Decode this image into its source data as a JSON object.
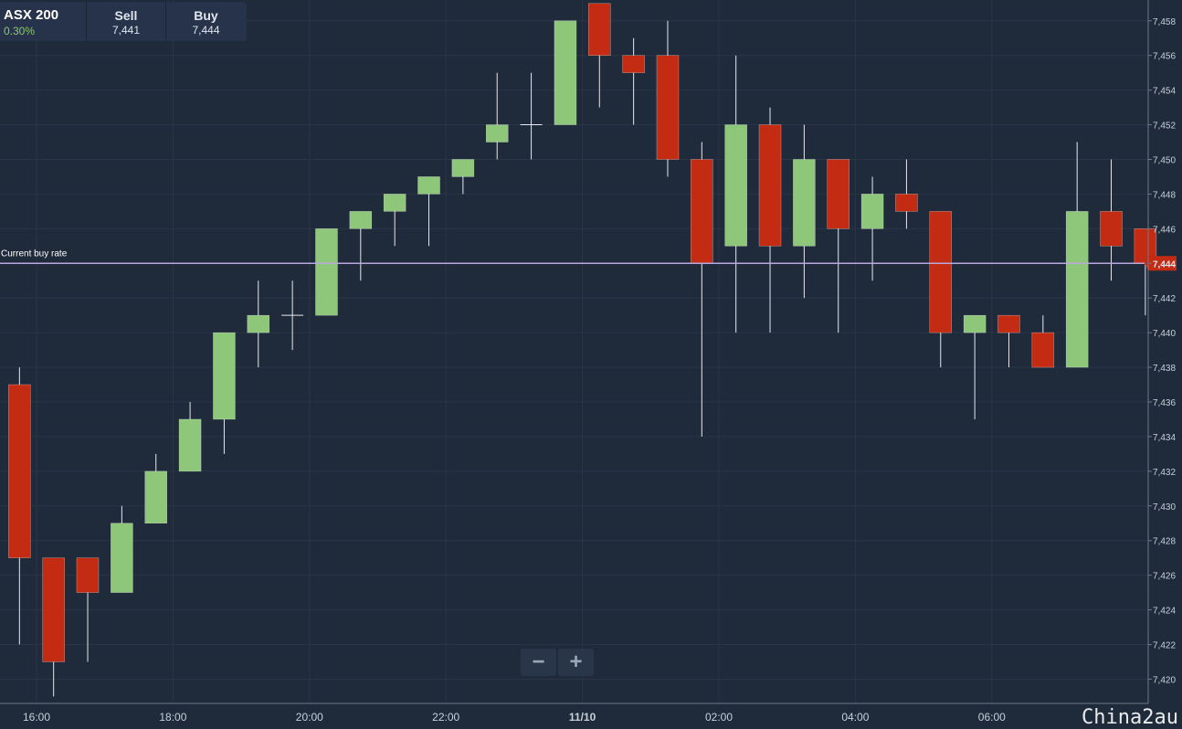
{
  "quote": {
    "instrument": "ASX 200",
    "change": "0.30%",
    "sell_label": "Sell",
    "sell_value": "7,441",
    "buy_label": "Buy",
    "buy_value": "7,444"
  },
  "zoom": {
    "out_label": "−",
    "in_label": "+"
  },
  "watermark": "China2au",
  "chart_data": {
    "type": "candlestick",
    "title": "",
    "x_tick_labels": [
      "16:00",
      "18:00",
      "20:00",
      "22:00",
      "11/10",
      "02:00",
      "04:00",
      "06:00"
    ],
    "y_tick_labels": [
      "7,420",
      "7,422",
      "7,424",
      "7,426",
      "7,428",
      "7,430",
      "7,432",
      "7,434",
      "7,436",
      "7,438",
      "7,440",
      "7,442",
      "7,444",
      "7,446",
      "7,448",
      "7,450",
      "7,452",
      "7,454",
      "7,456",
      "7,458"
    ],
    "ylim": [
      7418.6,
      7459.2
    ],
    "grid": true,
    "candle_interval_minutes": 30,
    "current_buy_rate": {
      "label": "Current buy rate",
      "value": 7444,
      "display": "7,444"
    },
    "colors": {
      "up": "#8ec77a",
      "down": "#c42b13",
      "wick": "#e6e9ee",
      "rate_line": "#b9a8de",
      "rate_badge": "#c42b13",
      "background": "#1f2a3a"
    },
    "candles": [
      {
        "time": "15:45",
        "open": 7437,
        "high": 7438,
        "low": 7422,
        "close": 7427
      },
      {
        "time": "16:15",
        "open": 7427,
        "high": 7427,
        "low": 7419,
        "close": 7421
      },
      {
        "time": "16:45",
        "open": 7427,
        "high": 7427,
        "low": 7421,
        "close": 7425
      },
      {
        "time": "17:15",
        "open": 7425,
        "high": 7430,
        "low": 7425,
        "close": 7429
      },
      {
        "time": "17:45",
        "open": 7429,
        "high": 7433,
        "low": 7429,
        "close": 7432
      },
      {
        "time": "18:15",
        "open": 7432,
        "high": 7436,
        "low": 7432,
        "close": 7435
      },
      {
        "time": "18:45",
        "open": 7435,
        "high": 7440,
        "low": 7433,
        "close": 7440
      },
      {
        "time": "19:15",
        "open": 7440,
        "high": 7443,
        "low": 7438,
        "close": 7441
      },
      {
        "time": "19:45",
        "open": 7441,
        "high": 7443,
        "low": 7439,
        "close": 7441
      },
      {
        "time": "20:15",
        "open": 7441,
        "high": 7446,
        "low": 7441,
        "close": 7446
      },
      {
        "time": "20:45",
        "open": 7446,
        "high": 7447,
        "low": 7443,
        "close": 7447
      },
      {
        "time": "21:15",
        "open": 7447,
        "high": 7448,
        "low": 7445,
        "close": 7448
      },
      {
        "time": "21:45",
        "open": 7448,
        "high": 7449,
        "low": 7445,
        "close": 7449
      },
      {
        "time": "22:15",
        "open": 7449,
        "high": 7450,
        "low": 7448,
        "close": 7450
      },
      {
        "time": "22:45",
        "open": 7451,
        "high": 7455,
        "low": 7450,
        "close": 7452
      },
      {
        "time": "23:15",
        "open": 7452,
        "high": 7455,
        "low": 7450,
        "close": 7452
      },
      {
        "time": "23:45",
        "open": 7452,
        "high": 7458,
        "low": 7452,
        "close": 7458
      },
      {
        "time": "00:15",
        "open": 7459,
        "high": 7459,
        "low": 7453,
        "close": 7456
      },
      {
        "time": "00:45",
        "open": 7456,
        "high": 7457,
        "low": 7452,
        "close": 7455
      },
      {
        "time": "01:15",
        "open": 7456,
        "high": 7458,
        "low": 7449,
        "close": 7450
      },
      {
        "time": "01:45",
        "open": 7450,
        "high": 7451,
        "low": 7434,
        "close": 7444
      },
      {
        "time": "02:15",
        "open": 7445,
        "high": 7456,
        "low": 7440,
        "close": 7452
      },
      {
        "time": "02:45",
        "open": 7452,
        "high": 7453,
        "low": 7440,
        "close": 7445
      },
      {
        "time": "03:15",
        "open": 7445,
        "high": 7452,
        "low": 7442,
        "close": 7450
      },
      {
        "time": "03:45",
        "open": 7450,
        "high": 7450,
        "low": 7440,
        "close": 7446
      },
      {
        "time": "04:15",
        "open": 7446,
        "high": 7449,
        "low": 7443,
        "close": 7448
      },
      {
        "time": "04:45",
        "open": 7448,
        "high": 7450,
        "low": 7446,
        "close": 7447
      },
      {
        "time": "05:15",
        "open": 7447,
        "high": 7447,
        "low": 7438,
        "close": 7440
      },
      {
        "time": "05:45",
        "open": 7440,
        "high": 7441,
        "low": 7435,
        "close": 7441
      },
      {
        "time": "06:15",
        "open": 7441,
        "high": 7441,
        "low": 7438,
        "close": 7440
      },
      {
        "time": "06:45",
        "open": 7440,
        "high": 7441,
        "low": 7438,
        "close": 7438
      },
      {
        "time": "07:15",
        "open": 7438,
        "high": 7451,
        "low": 7438,
        "close": 7447
      },
      {
        "time": "07:45",
        "open": 7447,
        "high": 7450,
        "low": 7443,
        "close": 7445
      },
      {
        "time": "08:15",
        "open": 7446,
        "high": 7446,
        "low": 7441,
        "close": 7444
      }
    ]
  }
}
